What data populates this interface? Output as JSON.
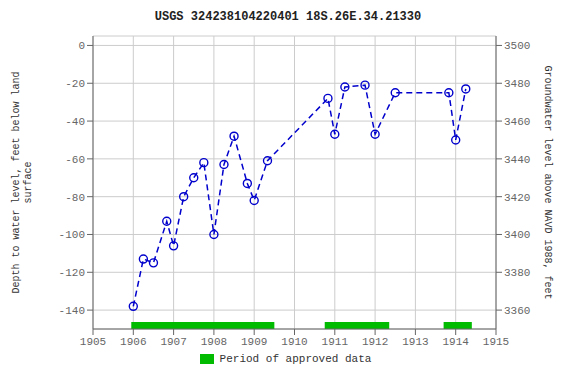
{
  "chart_data": {
    "type": "line",
    "title": "USGS 324238104220401 18S.26E.34.21330",
    "ylabel": "Depth to water level, feet below land\nsurface",
    "y2label": "Groundwater level above NAVD 1988, feet",
    "x": [
      1906.0,
      1906.25,
      1906.5,
      1906.83,
      1907.0,
      1907.25,
      1907.5,
      1907.75,
      1908.0,
      1908.25,
      1908.5,
      1908.83,
      1909.0,
      1909.33,
      1910.83,
      1911.0,
      1911.25,
      1911.75,
      1912.0,
      1912.5,
      1913.83,
      1914.0,
      1914.25
    ],
    "values": [
      -138,
      -113,
      -115,
      -93,
      -106,
      -80,
      -70,
      -62,
      -100,
      -63,
      -48,
      -73,
      -82,
      -61,
      -28,
      -47,
      -22,
      -21,
      -47,
      -25,
      -25,
      -50,
      -23
    ],
    "color": "#0000CC",
    "marker": "circle",
    "line_style": "dashed",
    "xlim": [
      1905,
      1915
    ],
    "xticks": [
      1905,
      1906,
      1907,
      1908,
      1909,
      1910,
      1911,
      1912,
      1913,
      1914,
      1915
    ],
    "ylim": [
      -150,
      5
    ],
    "yticks": [
      0,
      -20,
      -40,
      -60,
      -80,
      -100,
      -120,
      -140
    ],
    "y2lim": [
      3350,
      3505
    ],
    "y2ticks": [
      3360,
      3380,
      3400,
      3420,
      3440,
      3460,
      3480,
      3500
    ],
    "grid": true,
    "legend": "bottom",
    "approved_periods": {
      "name": "Period of approved data",
      "color": "#00bb00",
      "ranges": [
        [
          1905.95,
          1909.5
        ],
        [
          1910.75,
          1912.35
        ],
        [
          1913.7,
          1914.4
        ]
      ]
    }
  }
}
